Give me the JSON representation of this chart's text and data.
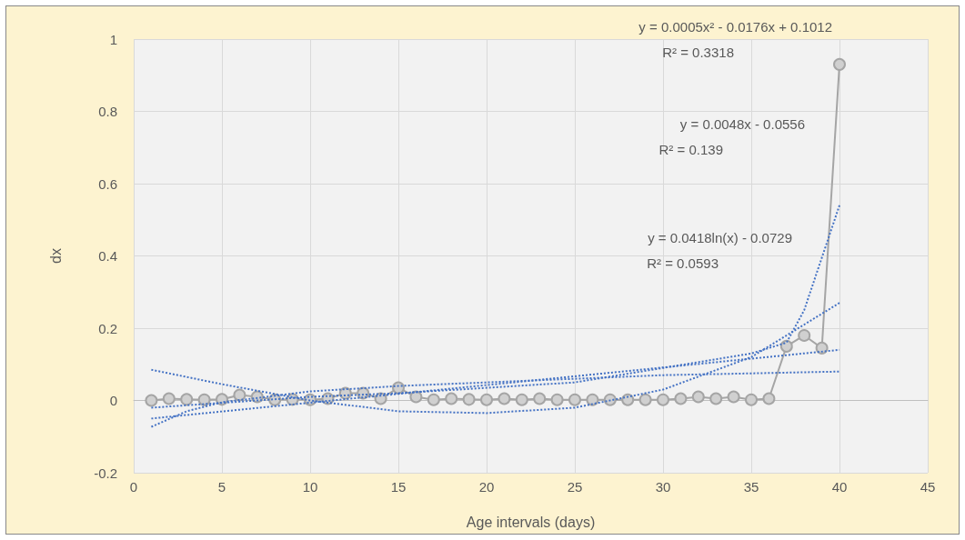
{
  "chart_data": {
    "type": "line",
    "xlabel": "Age intervals (days)",
    "ylabel": "dx",
    "xlim": [
      0,
      45
    ],
    "xticks": [
      0,
      5,
      10,
      15,
      20,
      25,
      30,
      35,
      40,
      45
    ],
    "ylim": [
      -0.2,
      1
    ],
    "yticks": [
      -0.2,
      0,
      0.2,
      0.4,
      0.6,
      0.8,
      1
    ],
    "grid": true,
    "marker": "circle",
    "series": [
      {
        "color": "#a5a5a5",
        "x": [
          1,
          2,
          3,
          4,
          5,
          6,
          7,
          8,
          9,
          10,
          11,
          12,
          13,
          14,
          15,
          16,
          17,
          18,
          19,
          20,
          21,
          22,
          23,
          24,
          25,
          26,
          27,
          28,
          29,
          30,
          31,
          32,
          33,
          34,
          35,
          36,
          37,
          38,
          39,
          40
        ],
        "values": [
          0,
          0.005,
          0.003,
          0.002,
          0.003,
          0.015,
          0.01,
          0.002,
          0.003,
          0.002,
          0.005,
          0.02,
          0.02,
          0.005,
          0.035,
          0.01,
          0.002,
          0.005,
          0.003,
          0.002,
          0.005,
          0.002,
          0.005,
          0.002,
          0.002,
          0.002,
          0.002,
          0.002,
          0.002,
          0.002,
          0.005,
          0.01,
          0.005,
          0.01,
          0.002,
          0.005,
          0.15,
          0.18,
          0.145,
          0.93
        ]
      },
      {
        "color": "#4472c4",
        "line_style": "dotted",
        "marker": "none",
        "x": [
          1,
          5,
          10,
          15,
          20,
          25,
          30,
          35,
          40
        ],
        "values": [
          0.085,
          0.045,
          0.0,
          -0.03,
          -0.035,
          -0.02,
          0.03,
          0.12,
          0.27
        ]
      },
      {
        "color": "#4472c4",
        "line_style": "dotted",
        "marker": "none",
        "x": [
          1,
          40
        ],
        "values": [
          -0.05,
          0.14
        ]
      },
      {
        "color": "#4472c4",
        "line_style": "dotted",
        "marker": "none",
        "x": [
          1,
          3,
          5,
          10,
          15,
          20,
          25,
          30,
          35,
          40
        ],
        "values": [
          -0.073,
          -0.03,
          -0.005,
          0.025,
          0.04,
          0.05,
          0.06,
          0.07,
          0.075,
          0.08
        ]
      },
      {
        "color": "#4472c4",
        "line_style": "dotted",
        "marker": "none",
        "x": [
          1,
          10,
          15,
          20,
          25,
          30,
          35,
          37,
          38,
          40
        ],
        "values": [
          -0.02,
          0.01,
          0.02,
          0.035,
          0.05,
          0.09,
          0.13,
          0.16,
          0.25,
          0.54
        ]
      }
    ],
    "annotations": [
      "y = 0.0005x² - 0.0176x + 0.1012",
      "R² = 0.3318",
      "y = 0.0048x - 0.0556",
      "R² = 0.139",
      "y = 0.0418ln(x) - 0.0729",
      "R² = 0.0593"
    ]
  }
}
